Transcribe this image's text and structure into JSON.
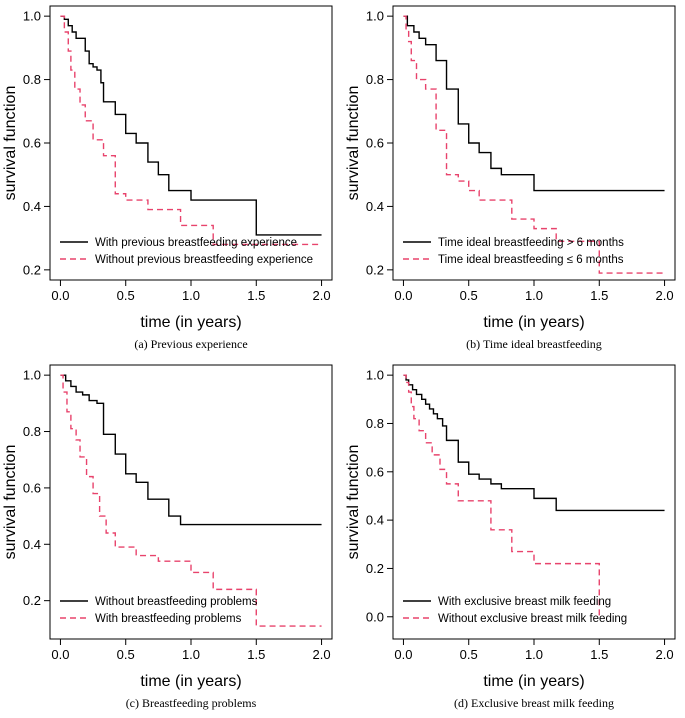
{
  "chart_data": [
    {
      "type": "line",
      "subtype": "step",
      "caption": "(a)  Previous experience",
      "xlabel": "time (in years)",
      "ylabel": "survival function",
      "xlim": [
        0,
        2.0
      ],
      "ylim": [
        0.2,
        1.0
      ],
      "xticks": [
        "0.0",
        "0.5",
        "1.0",
        "1.5",
        "2.0"
      ],
      "yticks": [
        "0.2",
        "0.4",
        "0.6",
        "0.8",
        "1.0"
      ],
      "legend_position": "bottom-left",
      "series": [
        {
          "name": "With previous breastfeeding experience",
          "color": "#000000",
          "dash": "solid",
          "x": [
            0,
            0.03,
            0.06,
            0.09,
            0.12,
            0.19,
            0.22,
            0.25,
            0.28,
            0.31,
            0.33,
            0.42,
            0.5,
            0.58,
            0.67,
            0.75,
            0.83,
            1.0,
            1.5,
            2.0
          ],
          "y": [
            1.0,
            0.99,
            0.97,
            0.95,
            0.93,
            0.89,
            0.85,
            0.84,
            0.83,
            0.79,
            0.73,
            0.69,
            0.63,
            0.6,
            0.54,
            0.5,
            0.45,
            0.42,
            0.31,
            0.31
          ]
        },
        {
          "name": "Without previous breastfeeding experience",
          "color": "#e8436c",
          "dash": "dashed",
          "x": [
            0,
            0.03,
            0.06,
            0.08,
            0.11,
            0.15,
            0.19,
            0.25,
            0.33,
            0.42,
            0.5,
            0.67,
            0.92,
            1.17,
            2.0
          ],
          "y": [
            1.0,
            0.95,
            0.89,
            0.83,
            0.77,
            0.72,
            0.67,
            0.61,
            0.56,
            0.44,
            0.42,
            0.39,
            0.34,
            0.28,
            0.28
          ]
        }
      ]
    },
    {
      "type": "line",
      "subtype": "step",
      "caption": "(b)  Time ideal breastfeeding",
      "xlabel": "time (in years)",
      "ylabel": "survival function",
      "xlim": [
        0,
        2.0
      ],
      "ylim": [
        0.2,
        1.0
      ],
      "xticks": [
        "0.0",
        "0.5",
        "1.0",
        "1.5",
        "2.0"
      ],
      "yticks": [
        "0.2",
        "0.4",
        "0.6",
        "0.8",
        "1.0"
      ],
      "legend_position": "bottom-left",
      "series": [
        {
          "name": "Time ideal breastfeeding > 6 months",
          "color": "#000000",
          "dash": "solid",
          "x": [
            0,
            0.03,
            0.08,
            0.12,
            0.17,
            0.25,
            0.33,
            0.42,
            0.5,
            0.58,
            0.67,
            0.75,
            1.0,
            2.0
          ],
          "y": [
            1.0,
            0.97,
            0.95,
            0.93,
            0.91,
            0.86,
            0.77,
            0.66,
            0.6,
            0.57,
            0.52,
            0.5,
            0.45,
            0.45
          ]
        },
        {
          "name": "Time ideal breastfeeding ≤ 6 months",
          "color": "#e8436c",
          "dash": "dashed",
          "x": [
            0,
            0.02,
            0.04,
            0.06,
            0.1,
            0.17,
            0.25,
            0.33,
            0.42,
            0.5,
            0.58,
            0.67,
            0.83,
            1.0,
            1.17,
            1.5,
            2.0
          ],
          "y": [
            1.0,
            0.96,
            0.92,
            0.86,
            0.8,
            0.77,
            0.64,
            0.5,
            0.48,
            0.45,
            0.42,
            0.42,
            0.36,
            0.33,
            0.29,
            0.19,
            0.19
          ]
        }
      ]
    },
    {
      "type": "line",
      "subtype": "step",
      "caption": "(c)  Breastfeeding problems",
      "xlabel": "time (in years)",
      "ylabel": "survival function",
      "xlim": [
        0,
        2.0
      ],
      "ylim": [
        0.1,
        1.0
      ],
      "xticks": [
        "0.0",
        "0.5",
        "1.0",
        "1.5",
        "2.0"
      ],
      "yticks": [
        "0.2",
        "0.4",
        "0.6",
        "0.8",
        "1.0"
      ],
      "legend_position": "bottom-left",
      "series": [
        {
          "name": "Without breastfeeding problems",
          "color": "#000000",
          "dash": "solid",
          "x": [
            0,
            0.04,
            0.08,
            0.12,
            0.17,
            0.22,
            0.28,
            0.33,
            0.42,
            0.5,
            0.58,
            0.67,
            0.83,
            0.92,
            2.0
          ],
          "y": [
            1.0,
            0.98,
            0.96,
            0.94,
            0.93,
            0.91,
            0.9,
            0.79,
            0.72,
            0.65,
            0.62,
            0.56,
            0.5,
            0.47,
            0.47
          ]
        },
        {
          "name": "With breastfeeding problems",
          "color": "#e8436c",
          "dash": "dashed",
          "x": [
            0,
            0.02,
            0.05,
            0.08,
            0.12,
            0.15,
            0.2,
            0.25,
            0.3,
            0.35,
            0.42,
            0.58,
            0.75,
            1.0,
            1.17,
            1.5,
            2.0
          ],
          "y": [
            1.0,
            0.94,
            0.87,
            0.81,
            0.77,
            0.71,
            0.64,
            0.58,
            0.5,
            0.44,
            0.39,
            0.36,
            0.34,
            0.3,
            0.24,
            0.11,
            0.11
          ]
        }
      ]
    },
    {
      "type": "line",
      "subtype": "step",
      "caption": "(d)  Exclusive breast milk feeding",
      "xlabel": "time (in years)",
      "ylabel": "survival function",
      "xlim": [
        0,
        2.0
      ],
      "ylim": [
        -0.05,
        1.0
      ],
      "xticks": [
        "0.0",
        "0.5",
        "1.0",
        "1.5",
        "2.0"
      ],
      "yticks": [
        "0.0",
        "0.2",
        "0.4",
        "0.6",
        "0.8",
        "1.0"
      ],
      "legend_position": "bottom-left",
      "series": [
        {
          "name": "With exclusive breast milk feeding",
          "color": "#000000",
          "dash": "solid",
          "x": [
            0,
            0.02,
            0.04,
            0.07,
            0.1,
            0.14,
            0.17,
            0.2,
            0.23,
            0.26,
            0.3,
            0.33,
            0.42,
            0.5,
            0.58,
            0.67,
            0.75,
            1.0,
            1.17,
            2.0
          ],
          "y": [
            1.0,
            0.98,
            0.96,
            0.94,
            0.92,
            0.9,
            0.88,
            0.86,
            0.84,
            0.82,
            0.79,
            0.73,
            0.64,
            0.59,
            0.57,
            0.55,
            0.53,
            0.49,
            0.44,
            0.44
          ]
        },
        {
          "name": "Without exclusive breast milk feeding",
          "color": "#e8436c",
          "dash": "dashed",
          "x": [
            0,
            0.02,
            0.04,
            0.06,
            0.08,
            0.12,
            0.17,
            0.22,
            0.28,
            0.33,
            0.42,
            0.67,
            0.83,
            1.0,
            1.5
          ],
          "y": [
            1.0,
            0.97,
            0.93,
            0.87,
            0.82,
            0.77,
            0.72,
            0.67,
            0.61,
            0.55,
            0.48,
            0.36,
            0.27,
            0.22,
            0.0
          ]
        }
      ]
    }
  ]
}
